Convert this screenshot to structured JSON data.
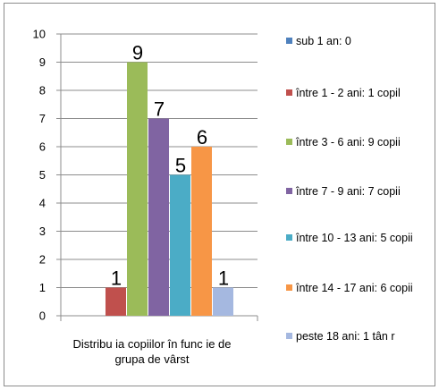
{
  "chart_data": {
    "type": "bar",
    "xlabel": "Distribu ia copiilor în func ie de grupa de vârst",
    "ylim": [
      0,
      10
    ],
    "yticks": [
      0,
      1,
      2,
      3,
      4,
      5,
      6,
      7,
      8,
      9,
      10
    ],
    "grid": true,
    "legend_position": "right",
    "series": [
      {
        "name": "sub 1 an: 0",
        "value": 0,
        "label": "",
        "color": "#4f81bd"
      },
      {
        "name": "între 1 - 2 ani: 1 copil",
        "value": 1,
        "label": "1",
        "color": "#c0504d"
      },
      {
        "name": "între 3 - 6 ani: 9 copii",
        "value": 9,
        "label": "9",
        "color": "#9bbb59"
      },
      {
        "name": "între 7 - 9 ani: 7 copii",
        "value": 7,
        "label": "7",
        "color": "#8064a2"
      },
      {
        "name": "între 10 - 13 ani: 5 copii",
        "value": 5,
        "label": "5",
        "color": "#4bacc6"
      },
      {
        "name": "între 14 - 17 ani: 6 copii",
        "value": 6,
        "label": "6",
        "color": "#f79646"
      },
      {
        "name": "peste 18 ani: 1 tân r",
        "value": 1,
        "label": "1",
        "color": "#a5b8e0"
      }
    ]
  }
}
